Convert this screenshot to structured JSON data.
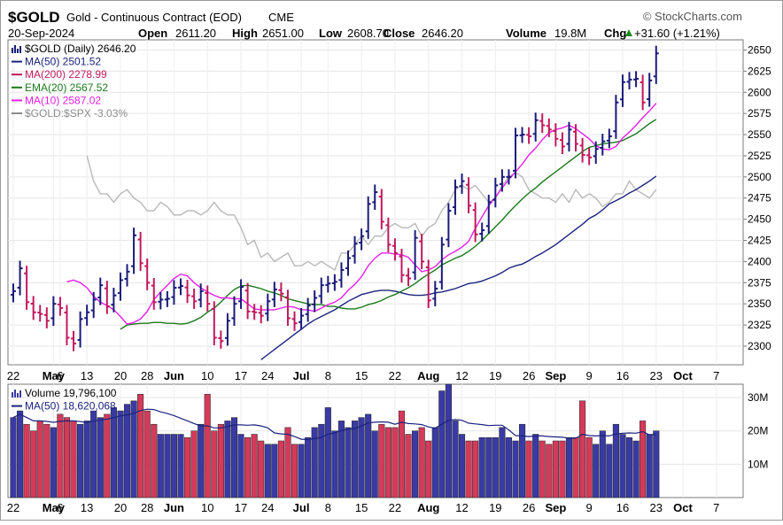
{
  "header": {
    "symbol": "$GOLD",
    "description": "Gold - Continuous Contract (EOD)",
    "exchange": "CME",
    "watermark": "© StockCharts.com",
    "date": "20-Sep-2024",
    "stats": [
      {
        "label": "Open",
        "value": "2611.20"
      },
      {
        "label": "High",
        "value": "2651.00"
      },
      {
        "label": "Low",
        "value": "2608.70"
      },
      {
        "label": "Close",
        "value": "2646.20"
      },
      {
        "label": "Volume",
        "value": "19.8M"
      },
      {
        "label": "Chg",
        "value": "+31.60 (+1.21%)",
        "arrow": "up-arrow-icon"
      }
    ]
  },
  "legend": [
    {
      "text": "$GOLD (Daily) 2646.20",
      "color": "#000000",
      "icon": "candlestick-icon"
    },
    {
      "text": "MA(50) 2501.52",
      "color": "#1a237e",
      "icon": "line-icon"
    },
    {
      "text": "MA(200) 2278.99",
      "color": "#c2185b",
      "icon": "line-icon"
    },
    {
      "text": "EMA(20) 2567.52",
      "color": "#1b7a1b",
      "icon": "line-icon"
    },
    {
      "text": "MA(10) 2587.02",
      "color": "#e81ee8",
      "icon": "line-icon"
    },
    {
      "text": "$GOLD:$SPX -3.03%",
      "color": "#8c8c8c",
      "icon": "line-icon"
    }
  ],
  "volume_legend": [
    {
      "text": "Volume 19,796,100",
      "color": "#000000",
      "icon": "volume-bars-icon"
    },
    {
      "text": "MA(50) 18,620,068",
      "color": "#1a237e",
      "icon": "line-icon"
    }
  ],
  "colors": {
    "up": "#1a1a7a",
    "down": "#c2185b",
    "vol_up": "#3a3aa5",
    "vol_down": "#d43a5a"
  },
  "chart_data": {
    "type": "candlestick",
    "ylim": [
      2278,
      2662
    ],
    "yticks": [
      2300,
      2325,
      2350,
      2375,
      2400,
      2425,
      2450,
      2475,
      2500,
      2525,
      2550,
      2575,
      2600,
      2625,
      2650
    ],
    "volume_ylim": [
      0,
      34000000
    ],
    "volume_ticks": [
      {
        "value": 10000000,
        "label": "10M"
      },
      {
        "value": 20000000,
        "label": "20M"
      },
      {
        "value": 30000000,
        "label": "30M"
      }
    ],
    "xaxis_labels": [
      {
        "index": 0,
        "label": "22",
        "bold": false
      },
      {
        "index": 6,
        "label": "May",
        "bold": true
      },
      {
        "index": 7,
        "label": "6",
        "bold": false
      },
      {
        "index": 11,
        "label": "13",
        "bold": false
      },
      {
        "index": 16,
        "label": "20",
        "bold": false
      },
      {
        "index": 20,
        "label": "28",
        "bold": false
      },
      {
        "index": 24,
        "label": "Jun",
        "bold": true
      },
      {
        "index": 29,
        "label": "10",
        "bold": false
      },
      {
        "index": 34,
        "label": "17",
        "bold": false
      },
      {
        "index": 38,
        "label": "24",
        "bold": false
      },
      {
        "index": 43,
        "label": "Jul",
        "bold": true
      },
      {
        "index": 47,
        "label": "8",
        "bold": false
      },
      {
        "index": 52,
        "label": "15",
        "bold": false
      },
      {
        "index": 57,
        "label": "22",
        "bold": false
      },
      {
        "index": 62,
        "label": "Aug",
        "bold": true
      },
      {
        "index": 67,
        "label": "12",
        "bold": false
      },
      {
        "index": 72,
        "label": "19",
        "bold": false
      },
      {
        "index": 77,
        "label": "26",
        "bold": false
      },
      {
        "index": 81,
        "label": "Sep",
        "bold": true
      },
      {
        "index": 86,
        "label": "9",
        "bold": false
      },
      {
        "index": 91,
        "label": "16",
        "bold": false
      },
      {
        "index": 96,
        "label": "23",
        "bold": false
      },
      {
        "index": 100,
        "label": "Oct",
        "bold": true
      },
      {
        "index": 105,
        "label": "7",
        "bold": false
      }
    ],
    "close": [
      2365,
      2392,
      2352,
      2340,
      2338,
      2330,
      2350,
      2345,
      2310,
      2303,
      2332,
      2340,
      2355,
      2372,
      2347,
      2360,
      2378,
      2388,
      2431,
      2398,
      2375,
      2352,
      2355,
      2356,
      2369,
      2371,
      2360,
      2353,
      2365,
      2350,
      2310,
      2306,
      2330,
      2350,
      2370,
      2341,
      2340,
      2336,
      2353,
      2367,
      2362,
      2333,
      2327,
      2336,
      2348,
      2357,
      2372,
      2374,
      2376,
      2390,
      2404,
      2421,
      2430,
      2468,
      2482,
      2447,
      2420,
      2410,
      2384,
      2380,
      2428,
      2400,
      2354,
      2368,
      2420,
      2460,
      2488,
      2495,
      2466,
      2432,
      2437,
      2470,
      2490,
      2500,
      2500,
      2549,
      2550,
      2548,
      2567,
      2561,
      2556,
      2545,
      2536,
      2556,
      2539,
      2526,
      2523,
      2533,
      2542,
      2548,
      2588,
      2612,
      2615,
      2616,
      2588,
      2614,
      2646
    ],
    "ma10": [
      2376,
      2378,
      2375,
      2369,
      2359,
      2352,
      2348,
      2343,
      2335,
      2326,
      2328,
      2332,
      2341,
      2355,
      2364,
      2372,
      2380,
      2385,
      2383,
      2375,
      2369,
      2364,
      2360,
      2357,
      2357,
      2356,
      2356,
      2350,
      2344,
      2343,
      2343,
      2343,
      2345,
      2347,
      2346,
      2343,
      2343,
      2341,
      2345,
      2349,
      2352,
      2357,
      2366,
      2373,
      2382,
      2395,
      2404,
      2410,
      2410,
      2409,
      2408,
      2405,
      2396,
      2388,
      2390,
      2394,
      2402,
      2408,
      2412,
      2417,
      2424,
      2439,
      2453,
      2466,
      2476,
      2487,
      2497,
      2506,
      2515,
      2526,
      2534,
      2544,
      2552,
      2556,
      2558,
      2561,
      2557,
      2551,
      2545,
      2537,
      2533,
      2532,
      2536,
      2546,
      2553,
      2561,
      2570,
      2578,
      2587
    ],
    "ema20": [
      2320,
      2325,
      2326,
      2327,
      2327,
      2328,
      2328,
      2327,
      2327,
      2326,
      2327,
      2330,
      2334,
      2340,
      2345,
      2352,
      2360,
      2367,
      2371,
      2372,
      2370,
      2368,
      2365,
      2363,
      2360,
      2356,
      2354,
      2352,
      2350,
      2349,
      2349,
      2347,
      2347,
      2345,
      2344,
      2344,
      2346,
      2349,
      2351,
      2354,
      2358,
      2361,
      2365,
      2369,
      2374,
      2380,
      2385,
      2390,
      2396,
      2400,
      2404,
      2407,
      2412,
      2418,
      2425,
      2433,
      2441,
      2449,
      2458,
      2466,
      2474,
      2481,
      2487,
      2494,
      2500,
      2506,
      2512,
      2518,
      2524,
      2530,
      2535,
      2537,
      2539,
      2540,
      2541,
      2543,
      2547,
      2551,
      2557,
      2563,
      2568
    ],
    "ma50": [
      2284,
      2290,
      2296,
      2302,
      2308,
      2314,
      2320,
      2326,
      2331,
      2335,
      2339,
      2343,
      2348,
      2353,
      2357,
      2361,
      2363,
      2365,
      2366,
      2366,
      2365,
      2363,
      2361,
      2360,
      2360,
      2361,
      2363,
      2364,
      2366,
      2368,
      2371,
      2374,
      2375,
      2377,
      2380,
      2383,
      2387,
      2392,
      2395,
      2397,
      2401,
      2406,
      2410,
      2415,
      2420,
      2426,
      2432,
      2438,
      2444,
      2451,
      2455,
      2461,
      2468,
      2472,
      2476,
      2481,
      2485,
      2490,
      2495,
      2501
    ],
    "ratio": [
      2525,
      2495,
      2480,
      2480,
      2470,
      2480,
      2485,
      2475,
      2470,
      2460,
      2460,
      2470,
      2465,
      2455,
      2455,
      2460,
      2460,
      2455,
      2460,
      2470,
      2460,
      2455,
      2455,
      2440,
      2420,
      2425,
      2405,
      2410,
      2400,
      2405,
      2410,
      2395,
      2395,
      2400,
      2395,
      2400,
      2395,
      2390,
      2410,
      2410,
      2420,
      2430,
      2420,
      2430,
      2430,
      2440,
      2445,
      2440,
      2440,
      2445,
      2430,
      2440,
      2445,
      2460,
      2470,
      2485,
      2490,
      2485,
      2490,
      2480,
      2470,
      2475,
      2490,
      2500,
      2505,
      2500,
      2485,
      2480,
      2475,
      2475,
      2470,
      2480,
      2470,
      2485,
      2475,
      2480,
      2475,
      2465,
      2470,
      2480,
      2480,
      2495,
      2485,
      2480,
      2475,
      2485
    ],
    "volume": [
      24,
      26,
      22,
      20,
      23,
      22,
      21,
      25,
      24,
      23,
      22,
      23,
      26,
      24,
      25,
      27,
      26,
      28,
      29,
      31,
      26,
      22,
      19,
      19,
      19,
      19,
      18,
      20,
      22,
      31,
      20,
      22,
      23,
      24,
      19,
      18,
      19,
      17,
      16,
      16,
      17,
      21,
      16,
      16,
      18,
      21,
      22,
      27,
      20,
      23,
      21,
      23,
      24,
      25,
      20,
      22,
      21,
      21,
      26,
      19,
      20,
      21,
      17,
      21,
      32,
      34,
      23,
      19,
      17,
      17,
      18,
      18,
      18,
      21,
      18,
      17,
      22,
      17,
      19,
      17,
      16,
      17,
      17,
      18,
      18,
      29,
      18,
      16,
      20,
      16,
      22,
      19,
      18,
      17,
      23,
      19,
      20
    ]
  }
}
